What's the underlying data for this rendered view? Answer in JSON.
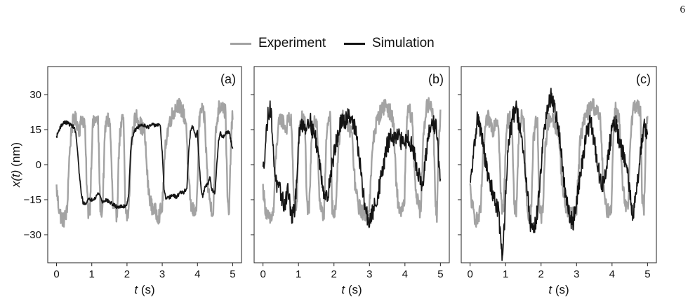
{
  "page_number": "6",
  "legend": [
    {
      "name": "Experiment",
      "color": "#a3a3a3"
    },
    {
      "name": "Simulation",
      "color": "#141414"
    }
  ],
  "chart_data": [
    {
      "type": "line",
      "panel_label": "(a)",
      "xlabel_var": "t",
      "xlabel_unit": " (s)",
      "ylabel_var": "x(t)",
      "ylabel_unit": " (nm)",
      "xlim": [
        -0.25,
        5.25
      ],
      "ylim": [
        -42,
        42
      ],
      "xticks": [
        0,
        1,
        2,
        3,
        4,
        5
      ],
      "yticks": [
        -30,
        -15,
        0,
        15,
        30
      ],
      "series": [
        {
          "name": "Experiment",
          "color": "#a3a3a3",
          "noise": 3.5,
          "x": [
            0,
            0.05,
            0.12,
            0.2,
            0.3,
            0.35,
            0.42,
            0.5,
            0.58,
            0.65,
            0.72,
            0.8,
            0.86,
            0.9,
            0.95,
            1.02,
            1.1,
            1.18,
            1.24,
            1.3,
            1.38,
            1.45,
            1.52,
            1.6,
            1.68,
            1.72,
            1.78,
            1.85,
            1.9,
            1.95,
            2.0,
            2.05,
            2.12,
            2.2,
            2.28,
            2.35,
            2.42,
            2.5,
            2.6,
            2.7,
            2.8,
            2.9,
            2.95,
            3.0,
            3.1,
            3.2,
            3.3,
            3.45,
            3.6,
            3.68,
            3.75,
            3.82,
            3.9,
            3.98,
            4.05,
            4.1,
            4.15,
            4.2,
            4.3,
            4.38,
            4.45,
            4.52,
            4.6,
            4.7,
            4.8,
            4.85,
            4.9,
            4.95,
            5.0
          ],
          "y": [
            -10,
            -17,
            -22,
            -24,
            -20,
            0,
            15,
            20,
            18,
            15,
            20,
            18,
            -10,
            -20,
            -18,
            16,
            20,
            18,
            -18,
            -20,
            15,
            20,
            17,
            -18,
            -22,
            -20,
            10,
            18,
            20,
            -18,
            -22,
            -20,
            8,
            18,
            21,
            18,
            16,
            14,
            -10,
            -18,
            -20,
            -22,
            -20,
            -18,
            10,
            18,
            22,
            26,
            22,
            18,
            -8,
            -18,
            -20,
            -18,
            18,
            24,
            22,
            20,
            -10,
            -18,
            -20,
            14,
            24,
            26,
            22,
            -15,
            -22,
            10,
            22
          ]
        },
        {
          "name": "Simulation",
          "color": "#141414",
          "noise": 0.8,
          "x": [
            0,
            0.05,
            0.1,
            0.2,
            0.3,
            0.4,
            0.5,
            0.55,
            0.6,
            0.65,
            0.7,
            0.75,
            0.8,
            0.9,
            1.0,
            1.1,
            1.2,
            1.3,
            1.4,
            1.5,
            1.6,
            1.7,
            1.8,
            1.9,
            2.0,
            2.05,
            2.1,
            2.15,
            2.2,
            2.3,
            2.4,
            2.5,
            2.6,
            2.7,
            2.8,
            2.9,
            2.95,
            3.0,
            3.05,
            3.1,
            3.2,
            3.3,
            3.4,
            3.5,
            3.6,
            3.7,
            3.75,
            3.8,
            3.85,
            3.9,
            3.95,
            4.0,
            4.05,
            4.1,
            4.15,
            4.2,
            4.3,
            4.35,
            4.4,
            4.45,
            4.5,
            4.55,
            4.6,
            4.65,
            4.7,
            4.75,
            4.8,
            4.9,
            4.95,
            5.0
          ],
          "y": [
            12,
            14,
            16,
            18,
            18,
            17,
            16,
            13,
            5,
            -5,
            -12,
            -16,
            -17,
            -15,
            -15,
            -14,
            -12,
            -16,
            -15,
            -16,
            -17,
            -18,
            -18,
            -18,
            -17,
            -12,
            5,
            12,
            14,
            16,
            17,
            17,
            16,
            17,
            17,
            17,
            16,
            5,
            -10,
            -15,
            -14,
            -13,
            -14,
            -12,
            -12,
            -10,
            5,
            14,
            16,
            15,
            12,
            14,
            0,
            -10,
            -14,
            -10,
            -8,
            -5,
            -10,
            -12,
            -12,
            0,
            10,
            14,
            12,
            12,
            14,
            14,
            10,
            7
          ]
        }
      ]
    },
    {
      "type": "line",
      "panel_label": "(b)",
      "xlabel_var": "t",
      "xlabel_unit": " (s)",
      "ylabel_var": "",
      "ylabel_unit": "",
      "xlim": [
        -0.25,
        5.25
      ],
      "ylim": [
        -42,
        42
      ],
      "xticks": [
        0,
        1,
        2,
        3,
        4,
        5
      ],
      "yticks": [
        -30,
        -15,
        0,
        15,
        30
      ],
      "series": [
        {
          "name": "Experiment",
          "color": "#a3a3a3",
          "noise": 3.5,
          "x": [
            0,
            0.05,
            0.12,
            0.2,
            0.3,
            0.35,
            0.42,
            0.5,
            0.58,
            0.65,
            0.72,
            0.8,
            0.86,
            0.9,
            0.95,
            1.02,
            1.1,
            1.18,
            1.24,
            1.3,
            1.38,
            1.45,
            1.52,
            1.6,
            1.68,
            1.72,
            1.78,
            1.85,
            1.9,
            1.95,
            2.0,
            2.05,
            2.12,
            2.2,
            2.28,
            2.35,
            2.42,
            2.5,
            2.6,
            2.7,
            2.8,
            2.9,
            2.95,
            3.0,
            3.1,
            3.2,
            3.3,
            3.45,
            3.6,
            3.68,
            3.75,
            3.82,
            3.9,
            3.98,
            4.05,
            4.1,
            4.15,
            4.2,
            4.3,
            4.38,
            4.45,
            4.52,
            4.6,
            4.7,
            4.8,
            4.85,
            4.9,
            4.95,
            5.0
          ],
          "y": [
            -10,
            -17,
            -22,
            -24,
            -20,
            0,
            15,
            20,
            18,
            15,
            20,
            18,
            -10,
            -20,
            -18,
            16,
            20,
            18,
            -18,
            -20,
            15,
            20,
            17,
            -18,
            -22,
            -20,
            10,
            18,
            20,
            -18,
            -22,
            -20,
            8,
            18,
            21,
            18,
            16,
            14,
            -10,
            -18,
            -20,
            -22,
            -20,
            -18,
            10,
            18,
            22,
            26,
            22,
            18,
            -8,
            -18,
            -20,
            -18,
            18,
            24,
            22,
            20,
            -10,
            -18,
            -20,
            14,
            24,
            26,
            22,
            -15,
            -22,
            10,
            22
          ]
        },
        {
          "name": "Simulation",
          "color": "#141414",
          "noise": 4.0,
          "x": [
            0,
            0.05,
            0.1,
            0.15,
            0.2,
            0.25,
            0.3,
            0.4,
            0.5,
            0.6,
            0.7,
            0.8,
            0.9,
            1.0,
            1.05,
            1.1,
            1.2,
            1.3,
            1.4,
            1.5,
            1.6,
            1.7,
            1.8,
            1.9,
            2.0,
            2.1,
            2.2,
            2.3,
            2.4,
            2.5,
            2.6,
            2.7,
            2.8,
            2.9,
            3.0,
            3.1,
            3.2,
            3.3,
            3.4,
            3.5,
            3.6,
            3.7,
            3.8,
            3.9,
            4.0,
            4.1,
            4.2,
            4.3,
            4.4,
            4.5,
            4.6,
            4.7,
            4.8,
            4.9,
            5.0
          ],
          "y": [
            -3,
            5,
            15,
            22,
            25,
            18,
            2,
            -10,
            -12,
            -18,
            -10,
            -22,
            -20,
            10,
            15,
            18,
            16,
            20,
            15,
            10,
            0,
            -10,
            -15,
            -5,
            5,
            12,
            18,
            18,
            22,
            20,
            15,
            5,
            -10,
            -20,
            -25,
            -20,
            -15,
            -8,
            0,
            8,
            12,
            10,
            12,
            10,
            10,
            12,
            8,
            2,
            -5,
            -10,
            5,
            15,
            18,
            15,
            -10
          ]
        }
      ]
    },
    {
      "type": "line",
      "panel_label": "(c)",
      "xlabel_var": "t",
      "xlabel_unit": " (s)",
      "ylabel_var": "",
      "ylabel_unit": "",
      "xlim": [
        -0.25,
        5.25
      ],
      "ylim": [
        -42,
        42
      ],
      "xticks": [
        0,
        1,
        2,
        3,
        4,
        5
      ],
      "yticks": [
        -30,
        -15,
        0,
        15,
        30
      ],
      "series": [
        {
          "name": "Experiment",
          "color": "#a3a3a3",
          "noise": 3.5,
          "x": [
            0,
            0.05,
            0.12,
            0.2,
            0.3,
            0.35,
            0.42,
            0.5,
            0.58,
            0.65,
            0.72,
            0.8,
            0.86,
            0.9,
            0.95,
            1.02,
            1.1,
            1.18,
            1.24,
            1.3,
            1.38,
            1.45,
            1.52,
            1.6,
            1.68,
            1.72,
            1.78,
            1.85,
            1.9,
            1.95,
            2.0,
            2.05,
            2.12,
            2.2,
            2.28,
            2.35,
            2.42,
            2.5,
            2.6,
            2.7,
            2.8,
            2.9,
            2.95,
            3.0,
            3.1,
            3.2,
            3.3,
            3.45,
            3.6,
            3.68,
            3.75,
            3.82,
            3.9,
            3.98,
            4.05,
            4.1,
            4.15,
            4.2,
            4.3,
            4.38,
            4.45,
            4.52,
            4.6,
            4.7,
            4.8,
            4.85,
            4.9,
            4.95,
            5.0
          ],
          "y": [
            -10,
            -17,
            -22,
            -24,
            -20,
            0,
            15,
            20,
            18,
            15,
            20,
            18,
            -10,
            -20,
            -18,
            16,
            20,
            18,
            -18,
            -20,
            15,
            20,
            17,
            -18,
            -22,
            -20,
            10,
            18,
            20,
            -18,
            -22,
            -20,
            8,
            18,
            21,
            18,
            16,
            14,
            -10,
            -18,
            -20,
            -22,
            -20,
            -18,
            10,
            18,
            22,
            26,
            22,
            18,
            -8,
            -18,
            -20,
            -18,
            18,
            24,
            22,
            20,
            -10,
            -18,
            -20,
            14,
            24,
            26,
            22,
            -15,
            -22,
            10,
            22
          ]
        },
        {
          "name": "Simulation",
          "color": "#141414",
          "noise": 4.0,
          "x": [
            0,
            0.1,
            0.2,
            0.3,
            0.4,
            0.5,
            0.6,
            0.7,
            0.8,
            0.85,
            0.9,
            0.95,
            1.0,
            1.05,
            1.1,
            1.2,
            1.3,
            1.4,
            1.5,
            1.6,
            1.7,
            1.8,
            1.9,
            2.0,
            2.1,
            2.2,
            2.3,
            2.4,
            2.5,
            2.6,
            2.7,
            2.8,
            2.9,
            3.0,
            3.1,
            3.2,
            3.3,
            3.4,
            3.5,
            3.6,
            3.7,
            3.8,
            3.9,
            4.0,
            4.1,
            4.2,
            4.3,
            4.4,
            4.5,
            4.6,
            4.7,
            4.8,
            4.9,
            5.0
          ],
          "y": [
            -10,
            5,
            20,
            15,
            5,
            -5,
            -10,
            -15,
            -20,
            -30,
            -38,
            -30,
            -15,
            0,
            12,
            20,
            25,
            15,
            5,
            -10,
            -25,
            -28,
            -20,
            0,
            15,
            25,
            30,
            22,
            15,
            0,
            -15,
            -22,
            -25,
            -15,
            -5,
            5,
            15,
            18,
            10,
            0,
            -10,
            -5,
            5,
            15,
            18,
            10,
            5,
            0,
            -12,
            -22,
            -10,
            5,
            18,
            12
          ]
        }
      ]
    }
  ]
}
